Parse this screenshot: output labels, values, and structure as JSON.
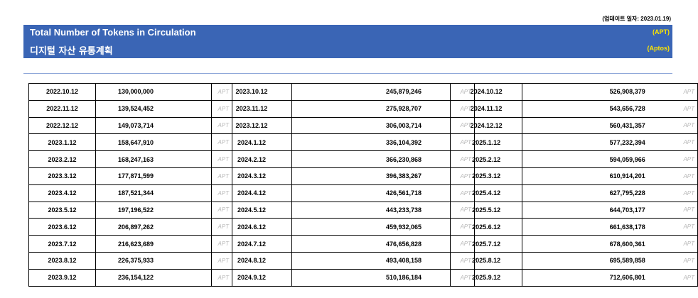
{
  "header": {
    "update": "(업데이트 일자: 2023.01.19)",
    "title": "Total Number of Tokens in Circulation",
    "subtitle": "디지털 자산 유통계획",
    "unit": "(APT)",
    "unit_name": "(Aptos)"
  },
  "tables": [
    {
      "rows": [
        [
          "2022.10.12",
          "130,000,000",
          "APT"
        ],
        [
          "2022.11.12",
          "139,524,452",
          "APT"
        ],
        [
          "2022.12.12",
          "149,073,714",
          "APT"
        ],
        [
          "2023.1.12",
          "158,647,910",
          "APT"
        ],
        [
          "2023.2.12",
          "168,247,163",
          "APT"
        ],
        [
          "2023.3.12",
          "177,871,599",
          "APT"
        ],
        [
          "2023.4.12",
          "187,521,344",
          "APT"
        ],
        [
          "2023.5.12",
          "197,196,522",
          "APT"
        ],
        [
          "2023.6.12",
          "206,897,262",
          "APT"
        ],
        [
          "2023.7.12",
          "216,623,689",
          "APT"
        ],
        [
          "2023.8.12",
          "226,375,933",
          "APT"
        ],
        [
          "2023.9.12",
          "236,154,122",
          "APT"
        ]
      ]
    },
    {
      "rows": [
        [
          "2023.10.12",
          "245,879,246",
          "APT"
        ],
        [
          "2023.11.12",
          "275,928,707",
          "APT"
        ],
        [
          "2023.12.12",
          "306,003,714",
          "APT"
        ],
        [
          "2024.1.12",
          "336,104,392",
          "APT"
        ],
        [
          "2024.2.12",
          "366,230,868",
          "APT"
        ],
        [
          "2024.3.12",
          "396,383,267",
          "APT"
        ],
        [
          "2024.4.12",
          "426,561,718",
          "APT"
        ],
        [
          "2024.5.12",
          "443,233,738",
          "APT"
        ],
        [
          "2024.6.12",
          "459,932,065",
          "APT"
        ],
        [
          "2024.7.12",
          "476,656,828",
          "APT"
        ],
        [
          "2024.8.12",
          "493,408,158",
          "APT"
        ],
        [
          "2024.9.12",
          "510,186,184",
          "APT"
        ]
      ]
    },
    {
      "rows": [
        [
          "2024.10.12",
          "526,908,379",
          "APT"
        ],
        [
          "2024.11.12",
          "543,656,728",
          "APT"
        ],
        [
          "2024.12.12",
          "560,431,357",
          "APT"
        ],
        [
          "2025.1.12",
          "577,232,394",
          "APT"
        ],
        [
          "2025.2.12",
          "594,059,966",
          "APT"
        ],
        [
          "2025.3.12",
          "610,914,201",
          "APT"
        ],
        [
          "2025.4.12",
          "627,795,228",
          "APT"
        ],
        [
          "2025.5.12",
          "644,703,177",
          "APT"
        ],
        [
          "2025.6.12",
          "661,638,178",
          "APT"
        ],
        [
          "2025.7.12",
          "678,600,361",
          "APT"
        ],
        [
          "2025.8.12",
          "695,589,858",
          "APT"
        ],
        [
          "2025.9.12",
          "712,606,801",
          "APT"
        ]
      ]
    }
  ]
}
